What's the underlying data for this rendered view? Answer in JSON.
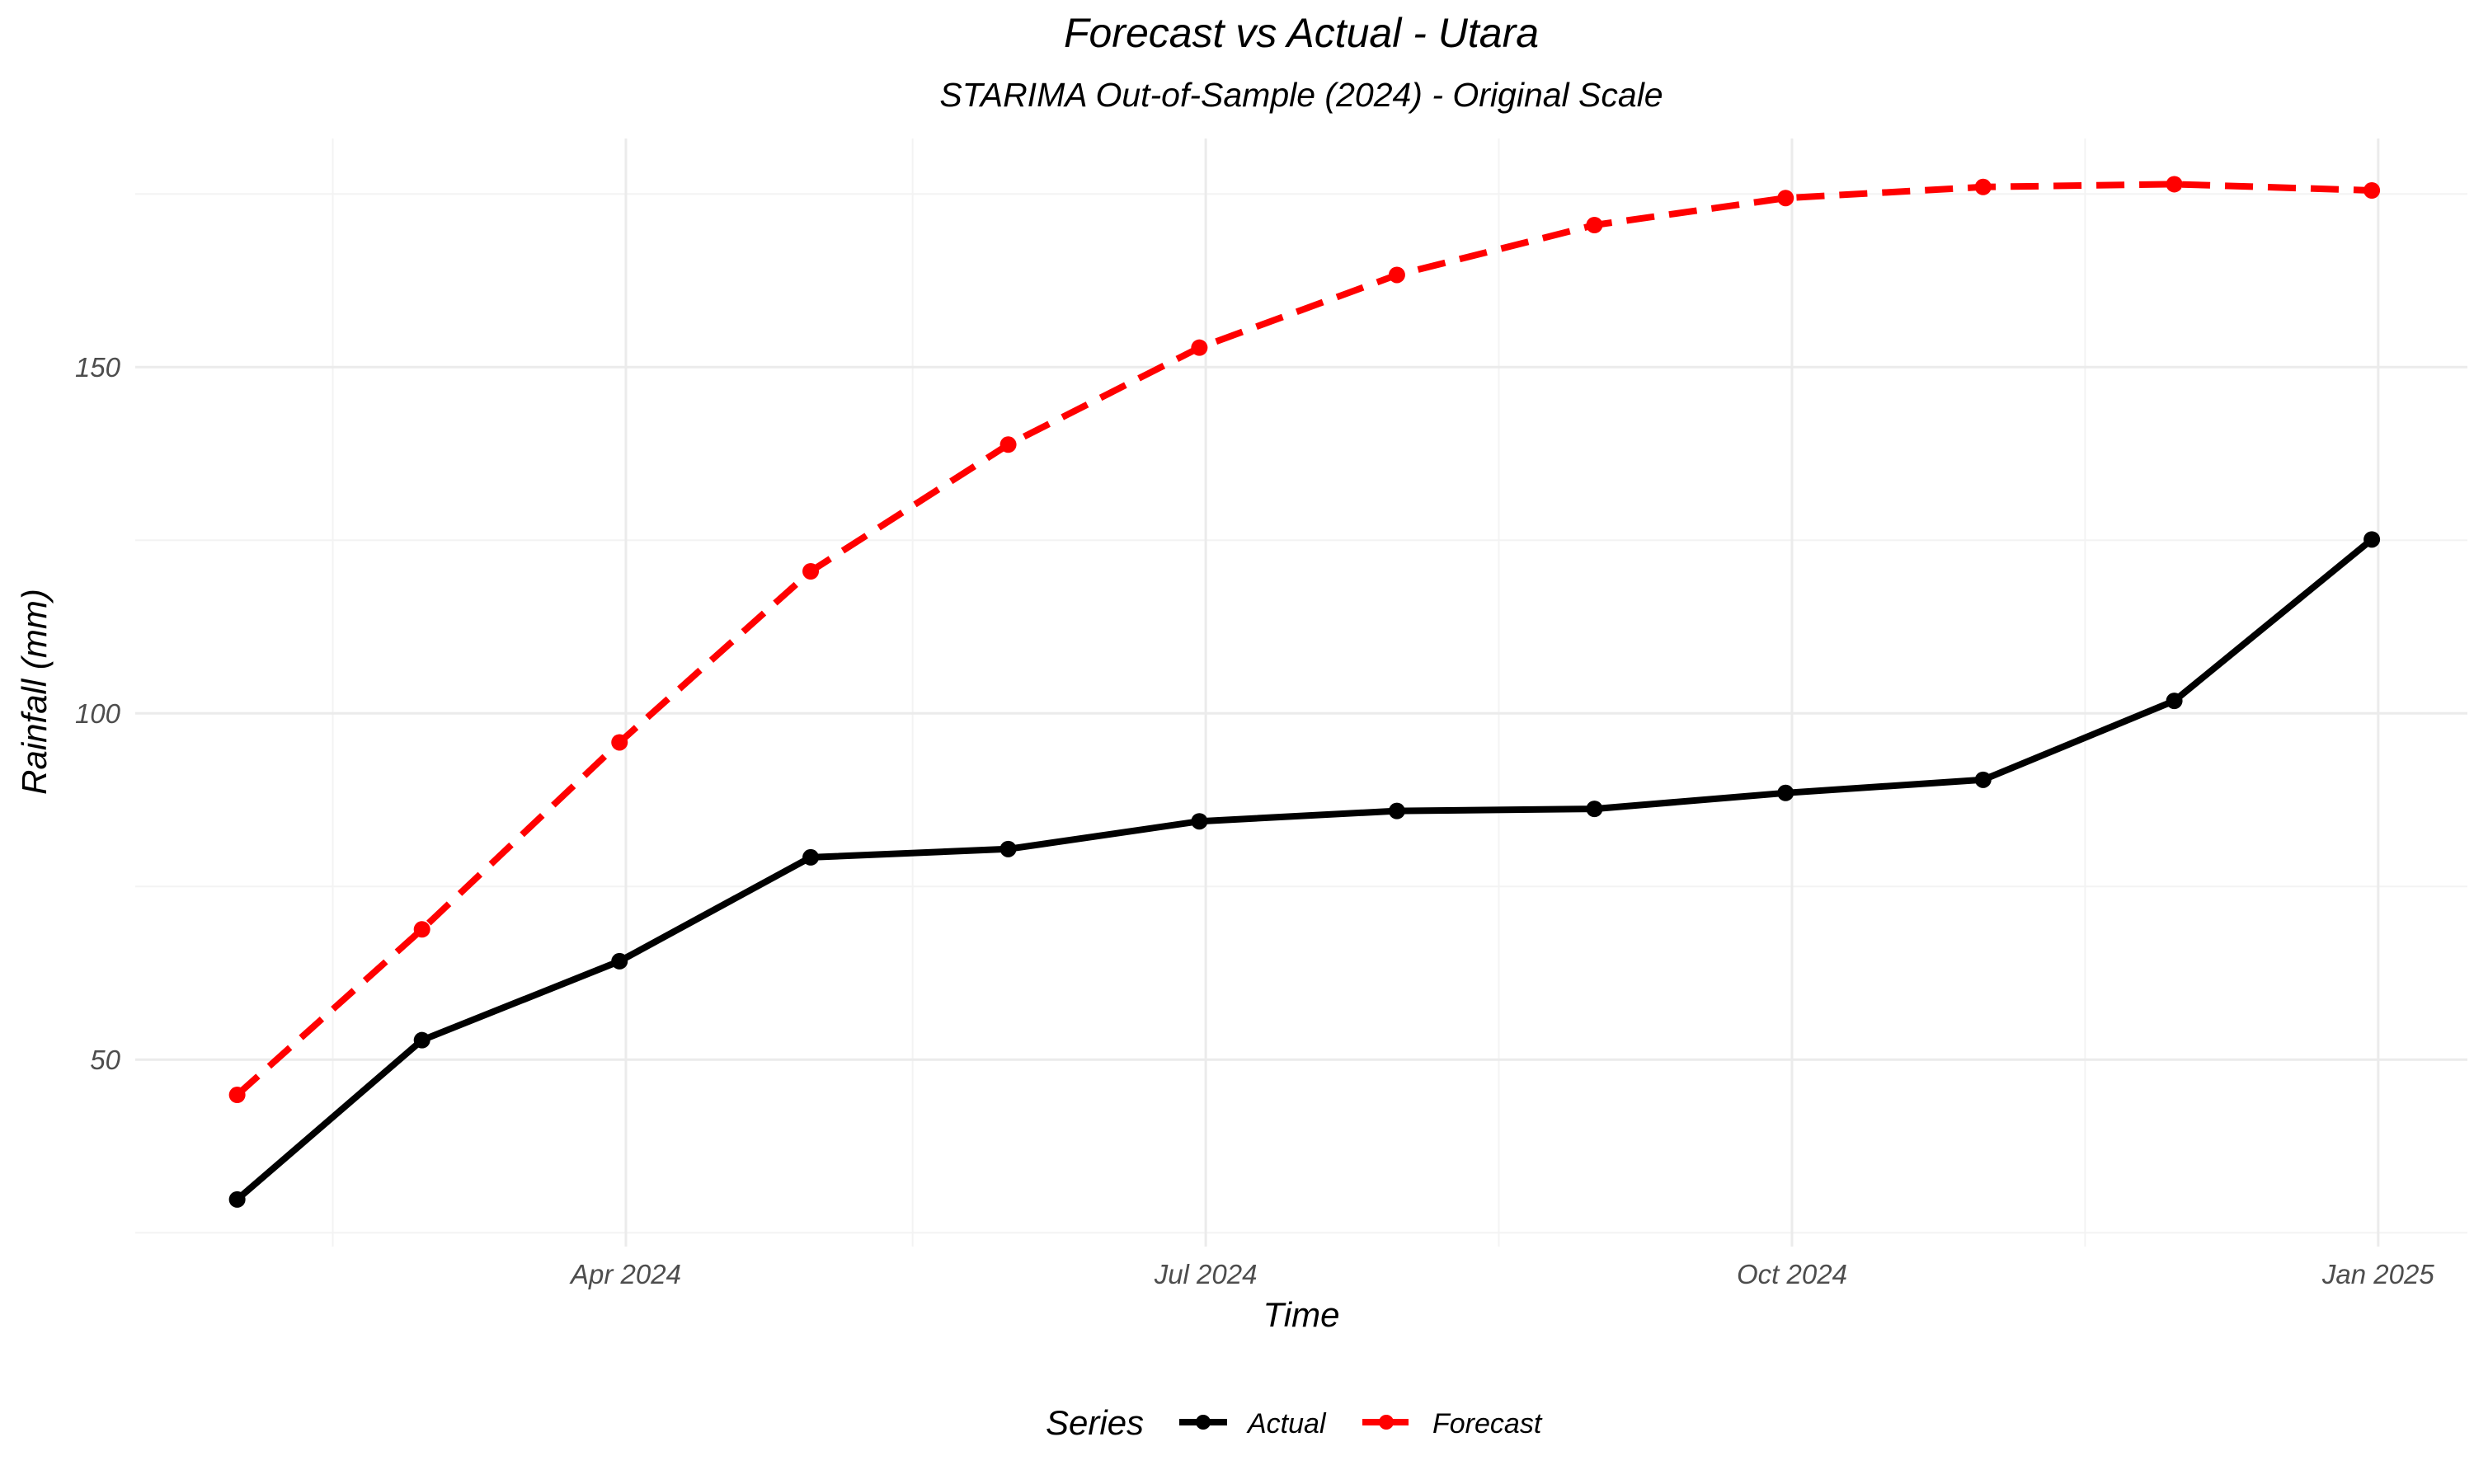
{
  "chart_data": {
    "type": "line",
    "title": "Forecast vs Actual - Utara",
    "subtitle": "STARIMA Out-of-Sample (2024) - Original Scale",
    "xlabel": "Time",
    "ylabel": "Rainfall (mm)",
    "x": [
      "2024-01-31",
      "2024-02-29",
      "2024-03-31",
      "2024-04-30",
      "2024-05-31",
      "2024-06-30",
      "2024-07-31",
      "2024-08-31",
      "2024-09-30",
      "2024-10-31",
      "2024-11-30",
      "2024-12-31"
    ],
    "x_ticks": [
      {
        "date": "2024-04-01",
        "label": "Apr 2024"
      },
      {
        "date": "2024-07-01",
        "label": "Jul 2024"
      },
      {
        "date": "2024-10-01",
        "label": "Oct 2024"
      },
      {
        "date": "2025-01-01",
        "label": "Jan 2025"
      }
    ],
    "x_minor_ticks": [
      "2024-02-15",
      "2024-05-16",
      "2024-08-16",
      "2024-11-16"
    ],
    "xlim": [
      "2024-01-15",
      "2025-01-15"
    ],
    "y_ticks": [
      50,
      100,
      150
    ],
    "y_minor_ticks": [
      25,
      75,
      125,
      175
    ],
    "ylim": [
      23,
      183
    ],
    "grid": true,
    "legend": {
      "title": "Series",
      "position": "bottom"
    },
    "series": [
      {
        "name": "Actual",
        "color": "#000000",
        "line_style": "solid",
        "values": [
          29.8,
          52.8,
          64.2,
          79.2,
          80.4,
          84.4,
          85.9,
          86.2,
          88.5,
          90.4,
          101.8,
          125.1
        ]
      },
      {
        "name": "Forecast",
        "color": "#ff0000",
        "line_style": "dashed",
        "values": [
          44.9,
          68.8,
          95.8,
          120.5,
          138.8,
          152.8,
          163.3,
          170.5,
          174.4,
          176.0,
          176.4,
          175.5
        ]
      }
    ]
  }
}
